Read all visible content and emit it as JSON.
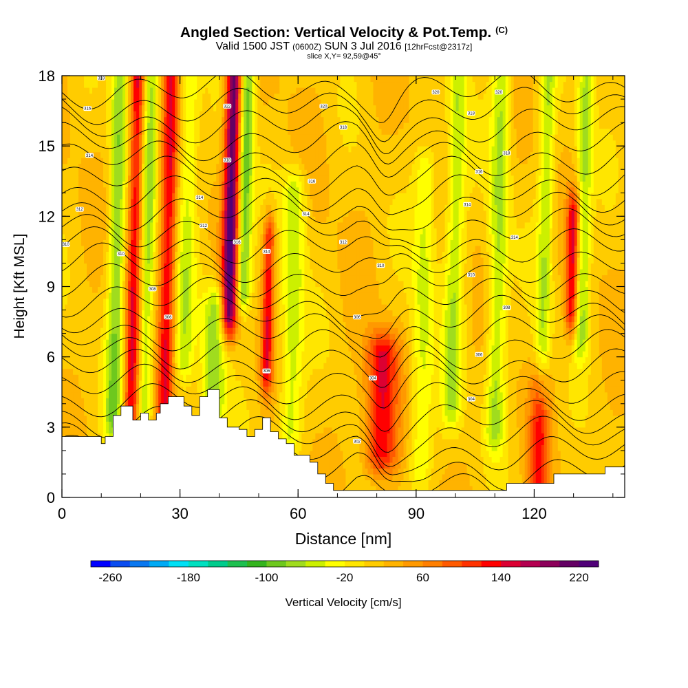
{
  "title": "Angled Section: Vertical Velocity & Pot.Temp.",
  "title_tag": "(C)",
  "subtitle": {
    "valid": "Valid 1500 JST",
    "utc": "(0600Z)",
    "date": "SUN 3 Jul 2016",
    "forecast": "[12hrFcst@2317z]"
  },
  "slice": "slice X,Y= 92,59@45°",
  "colors": {
    "colorbar": [
      "#0000ff",
      "#0a4cf0",
      "#0a78f0",
      "#00aaf5",
      "#00e0f5",
      "#00e0c0",
      "#00cc8c",
      "#1ec050",
      "#34b41e",
      "#6ec81e",
      "#a0dc1e",
      "#ccf000",
      "#ffff00",
      "#ffe600",
      "#ffcc00",
      "#ffb300",
      "#ff9900",
      "#ff7f00",
      "#ff5a00",
      "#ff3200",
      "#ff0000",
      "#dc0032",
      "#b40050",
      "#8c005a",
      "#640064",
      "#500078"
    ]
  },
  "chart_data": {
    "type": "heatmap",
    "xlabel": "Distance [nm]",
    "ylabel": "Height [Kft MSL]",
    "xlim": [
      0,
      143
    ],
    "ylim": [
      0,
      18
    ],
    "xticks": [
      0,
      30,
      60,
      90,
      120
    ],
    "yticks": [
      0,
      3,
      6,
      9,
      12,
      15,
      18
    ],
    "colorbar": {
      "label": "Vertical Velocity [cm/s]",
      "ticks": [
        -260,
        -180,
        -100,
        -20,
        60,
        140,
        220
      ],
      "min": -280,
      "max": 240,
      "step": 20
    },
    "updrafts": [
      {
        "x": 13,
        "w": 2.2,
        "y0": 3.5,
        "y1": 18,
        "amp": -90
      },
      {
        "x": 17.5,
        "w": 1.8,
        "y0": 3,
        "y1": 18,
        "amp": 130
      },
      {
        "x": 21,
        "w": 2,
        "y0": 4,
        "y1": 18,
        "amp": -80
      },
      {
        "x": 26,
        "w": 2,
        "y0": 3,
        "y1": 18,
        "amp": 120
      },
      {
        "x": 31,
        "w": 2.5,
        "y0": 6,
        "y1": 18,
        "amp": -60
      },
      {
        "x": 38.5,
        "w": 3,
        "y0": 4,
        "y1": 8,
        "amp": -90
      },
      {
        "x": 42.5,
        "w": 2,
        "y0": 8,
        "y1": 18,
        "amp": 210
      },
      {
        "x": 46,
        "w": 2,
        "y0": 9,
        "y1": 18,
        "amp": -110
      },
      {
        "x": 52,
        "w": 1.5,
        "y0": 5.5,
        "y1": 11,
        "amp": 120
      },
      {
        "x": 58,
        "w": 3,
        "y0": 3,
        "y1": 13,
        "amp": -70
      },
      {
        "x": 81,
        "w": 4,
        "y0": 2,
        "y1": 6,
        "amp": 130
      },
      {
        "x": 91,
        "w": 3,
        "y0": 1.5,
        "y1": 14,
        "amp": -60
      },
      {
        "x": 99,
        "w": 2.5,
        "y0": 4,
        "y1": 18,
        "amp": -70
      },
      {
        "x": 110,
        "w": 2.5,
        "y0": 3,
        "y1": 18,
        "amp": -80
      },
      {
        "x": 121,
        "w": 2.5,
        "y0": 0.5,
        "y1": 4.5,
        "amp": 100
      },
      {
        "x": 122,
        "w": 2,
        "y0": 5,
        "y1": 18,
        "amp": -70
      },
      {
        "x": 129.5,
        "w": 1.5,
        "y0": 8,
        "y1": 12,
        "amp": 130
      },
      {
        "x": 132,
        "w": 2,
        "y0": 7,
        "y1": 18,
        "amp": -80
      }
    ],
    "terrain": [
      [
        0,
        2.6
      ],
      [
        10,
        2.6
      ],
      [
        10,
        2.3
      ],
      [
        11,
        2.3
      ],
      [
        11,
        2.6
      ],
      [
        13,
        2.6
      ],
      [
        13,
        3.5
      ],
      [
        15,
        3.5
      ],
      [
        15,
        3.9
      ],
      [
        18,
        3.9
      ],
      [
        18,
        3.3
      ],
      [
        20,
        3.3
      ],
      [
        20,
        3.6
      ],
      [
        22,
        3.6
      ],
      [
        22,
        3.3
      ],
      [
        24,
        3.3
      ],
      [
        24,
        3.6
      ],
      [
        25,
        3.6
      ],
      [
        25,
        4.0
      ],
      [
        27,
        4.0
      ],
      [
        27,
        4.3
      ],
      [
        31,
        4.3
      ],
      [
        31,
        3.9
      ],
      [
        33,
        3.9
      ],
      [
        33,
        3.5
      ],
      [
        35,
        3.5
      ],
      [
        35,
        4.3
      ],
      [
        37,
        4.3
      ],
      [
        37,
        4.6
      ],
      [
        40,
        4.6
      ],
      [
        40,
        3.4
      ],
      [
        42,
        3.4
      ],
      [
        42,
        3.0
      ],
      [
        45,
        3.0
      ],
      [
        45,
        2.9
      ],
      [
        47,
        2.9
      ],
      [
        47,
        2.6
      ],
      [
        49,
        2.6
      ],
      [
        49,
        2.9
      ],
      [
        51,
        2.9
      ],
      [
        51,
        3.4
      ],
      [
        53,
        3.4
      ],
      [
        53,
        2.8
      ],
      [
        55,
        2.8
      ],
      [
        55,
        2.5
      ],
      [
        57,
        2.5
      ],
      [
        57,
        2.3
      ],
      [
        59,
        2.3
      ],
      [
        59,
        1.8
      ],
      [
        63,
        1.8
      ],
      [
        63,
        1.5
      ],
      [
        65,
        1.5
      ],
      [
        65,
        1.0
      ],
      [
        67,
        1.0
      ],
      [
        67,
        0.6
      ],
      [
        69,
        0.6
      ],
      [
        69,
        0.3
      ],
      [
        71,
        0.3
      ],
      [
        71,
        0.3
      ],
      [
        113,
        0.3
      ],
      [
        113,
        0.6
      ],
      [
        125,
        0.6
      ],
      [
        125,
        1.0
      ],
      [
        138,
        1.0
      ],
      [
        138,
        1.3
      ],
      [
        143,
        1.3
      ]
    ],
    "contour_labels": [
      {
        "x": 10,
        "y": 17.9,
        "t": "318"
      },
      {
        "x": 6.5,
        "y": 16.6,
        "t": "316"
      },
      {
        "x": 7,
        "y": 14.6,
        "t": "314"
      },
      {
        "x": 4.5,
        "y": 12.3,
        "t": "312"
      },
      {
        "x": 1,
        "y": 10.8,
        "t": "310"
      },
      {
        "x": 15,
        "y": 10.4,
        "t": "310"
      },
      {
        "x": 23,
        "y": 8.9,
        "t": "308"
      },
      {
        "x": 27,
        "y": 7.7,
        "t": "306"
      },
      {
        "x": 36,
        "y": 11.6,
        "t": "312"
      },
      {
        "x": 35,
        "y": 12.8,
        "t": "314"
      },
      {
        "x": 42,
        "y": 16.7,
        "t": "322"
      },
      {
        "x": 42,
        "y": 14.4,
        "t": "318"
      },
      {
        "x": 44.5,
        "y": 10.9,
        "t": "316"
      },
      {
        "x": 52,
        "y": 10.5,
        "t": "314"
      },
      {
        "x": 52,
        "y": 5.4,
        "t": "306"
      },
      {
        "x": 62,
        "y": 12.1,
        "t": "314"
      },
      {
        "x": 63.5,
        "y": 13.5,
        "t": "316"
      },
      {
        "x": 66.5,
        "y": 16.7,
        "t": "320"
      },
      {
        "x": 71.5,
        "y": 15.8,
        "t": "318"
      },
      {
        "x": 71.5,
        "y": 10.9,
        "t": "312"
      },
      {
        "x": 75,
        "y": 7.7,
        "t": "306"
      },
      {
        "x": 81,
        "y": 9.9,
        "t": "310"
      },
      {
        "x": 79,
        "y": 5.1,
        "t": "304"
      },
      {
        "x": 75,
        "y": 2.4,
        "t": "302"
      },
      {
        "x": 95,
        "y": 17.3,
        "t": "320"
      },
      {
        "x": 104,
        "y": 16.4,
        "t": "318"
      },
      {
        "x": 103,
        "y": 12.5,
        "t": "314"
      },
      {
        "x": 104,
        "y": 9.5,
        "t": "310"
      },
      {
        "x": 106,
        "y": 13.9,
        "t": "316"
      },
      {
        "x": 111,
        "y": 17.3,
        "t": "320"
      },
      {
        "x": 113,
        "y": 14.7,
        "t": "318"
      },
      {
        "x": 115,
        "y": 11.1,
        "t": "314"
      },
      {
        "x": 113,
        "y": 8.1,
        "t": "308"
      },
      {
        "x": 106,
        "y": 6.1,
        "t": "306"
      },
      {
        "x": 104,
        "y": 4.2,
        "t": "304"
      }
    ]
  }
}
